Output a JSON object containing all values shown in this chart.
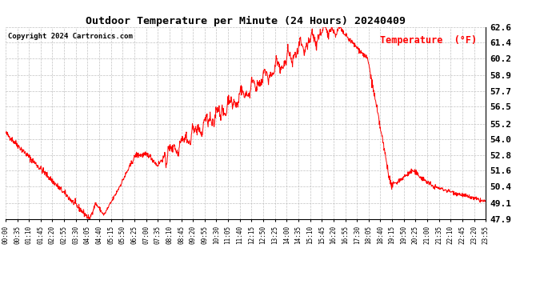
{
  "title": "Outdoor Temperature per Minute (24 Hours) 20240409",
  "copyright_text": "Copyright 2024 Cartronics.com",
  "legend_label": "Temperature  (°F)",
  "line_color": "red",
  "background_color": "white",
  "grid_color": "#bbbbbb",
  "ylim": [
    47.9,
    62.6
  ],
  "yticks": [
    47.9,
    49.1,
    50.4,
    51.6,
    52.8,
    54.0,
    55.2,
    56.5,
    57.7,
    58.9,
    60.2,
    61.4,
    62.6
  ],
  "x_tick_labels": [
    "00:00",
    "00:35",
    "01:10",
    "01:45",
    "02:20",
    "02:55",
    "03:30",
    "04:05",
    "04:40",
    "05:15",
    "05:50",
    "06:25",
    "07:00",
    "07:35",
    "08:10",
    "08:45",
    "09:20",
    "09:55",
    "10:30",
    "11:05",
    "11:40",
    "12:15",
    "12:50",
    "13:25",
    "14:00",
    "14:35",
    "15:10",
    "15:45",
    "16:20",
    "16:55",
    "17:30",
    "18:05",
    "18:40",
    "19:15",
    "19:50",
    "20:25",
    "21:00",
    "21:35",
    "22:10",
    "22:45",
    "23:20",
    "23:55"
  ],
  "num_points": 1440
}
